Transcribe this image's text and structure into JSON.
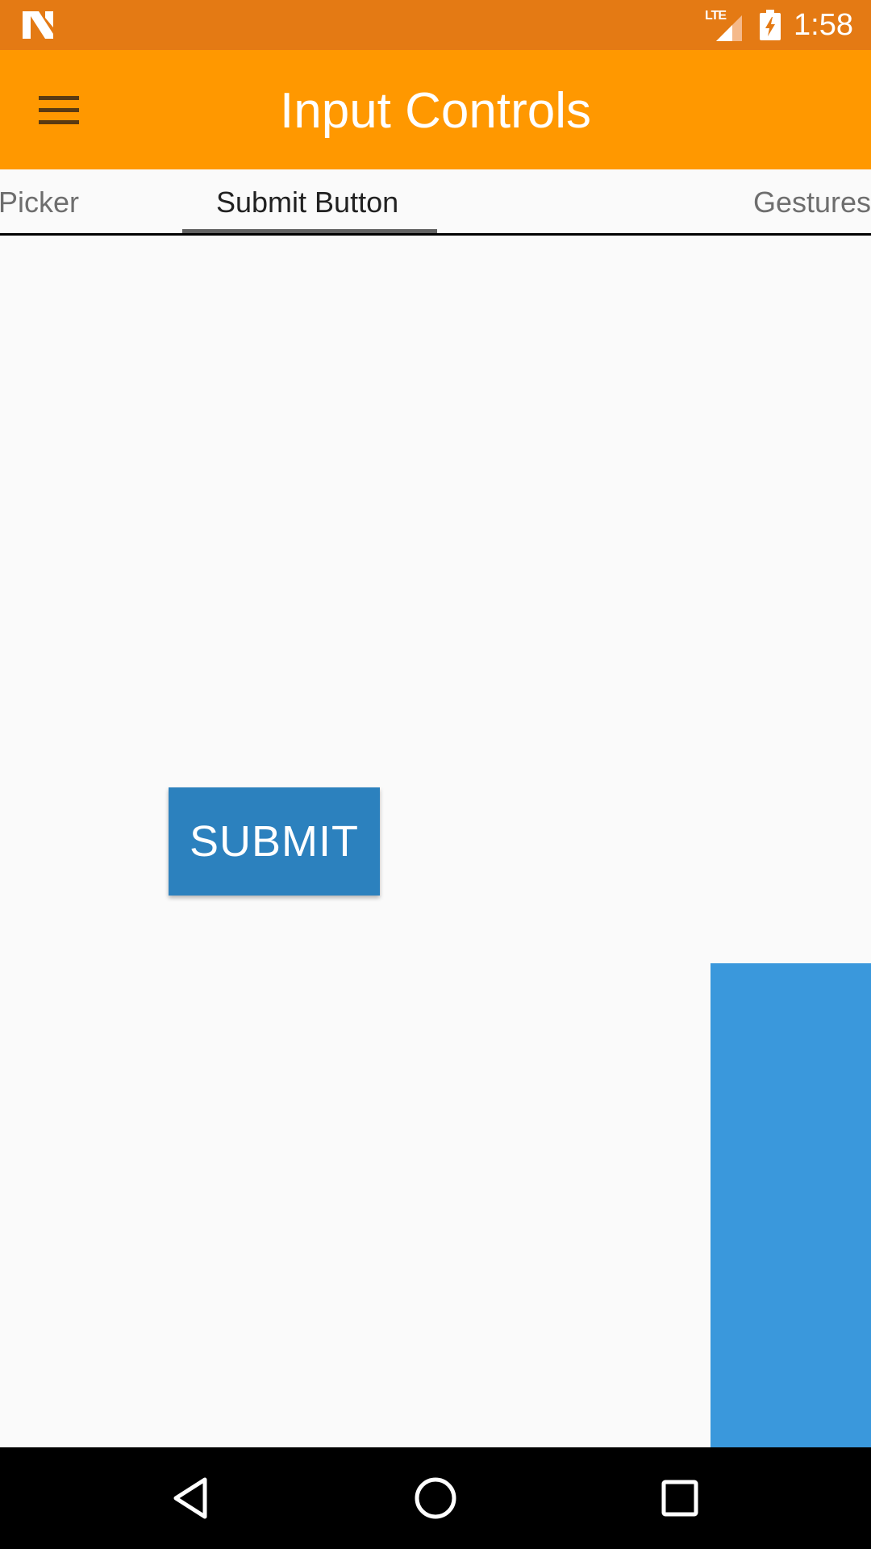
{
  "status_bar": {
    "network_label": "LTE",
    "time": "1:58",
    "icons": [
      "n-logo-icon",
      "lte-signal-icon",
      "battery-charging-icon"
    ],
    "background_color": "#E47A14"
  },
  "toolbar": {
    "title": "Input Controls",
    "menu_icon": "hamburger-menu-icon",
    "background_color": "#FF9800"
  },
  "tabs": {
    "items": [
      {
        "label": "Picker",
        "selected": false
      },
      {
        "label": "Submit Button",
        "selected": true
      },
      {
        "label": "Gestures",
        "selected": false
      }
    ]
  },
  "content": {
    "submit_label": "SUBMIT",
    "submit_color": "#2C81BE",
    "panel_color": "#3A98DC"
  },
  "nav_bar": {
    "icons": [
      "back-icon",
      "home-icon",
      "recents-icon"
    ]
  }
}
